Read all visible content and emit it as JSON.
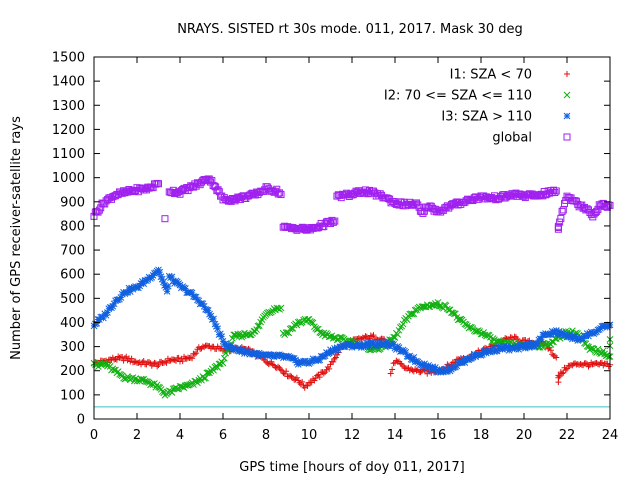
{
  "chart_data": {
    "type": "scatter",
    "title": "NRAYS. SISTED rt 30s mode. 011, 2017. Mask 30 deg",
    "xlabel": "GPS time [hours of doy 011, 2017]",
    "ylabel": "Number of GPS receiver-satellite rays",
    "xlim": [
      0,
      24
    ],
    "ylim": [
      0,
      1500
    ],
    "xticks": [
      0,
      2,
      4,
      6,
      8,
      10,
      12,
      14,
      16,
      18,
      20,
      22,
      24
    ],
    "yticks": [
      0,
      100,
      200,
      300,
      400,
      500,
      600,
      700,
      800,
      900,
      1000,
      1100,
      1200,
      1300,
      1400,
      1500
    ],
    "grid": false,
    "legend_position": "top-right",
    "reference_line": {
      "y": 50,
      "color": "#40c0c0"
    },
    "series": [
      {
        "name": "I1: SZA < 70",
        "marker": "+",
        "color": "#e01010",
        "points": [
          [
            0,
            230
          ],
          [
            0.5,
            240
          ],
          [
            1,
            250
          ],
          [
            1.5,
            250
          ],
          [
            2,
            235
          ],
          [
            2.5,
            230
          ],
          [
            3,
            225
          ],
          [
            3.5,
            245
          ],
          [
            4,
            245
          ],
          [
            4.5,
            255
          ],
          [
            5,
            300
          ],
          [
            5.5,
            300
          ],
          [
            6,
            285
          ],
          [
            6.5,
            290
          ],
          [
            7,
            290
          ],
          [
            7.5,
            270
          ],
          [
            8,
            240
          ],
          [
            8.5,
            220
          ],
          [
            9,
            185
          ],
          [
            9.5,
            160
          ],
          [
            9.8,
            135
          ],
          [
            10,
            150
          ],
          [
            10.5,
            180
          ],
          [
            11,
            220
          ],
          [
            11.5,
            300
          ],
          [
            12,
            320
          ],
          [
            12.5,
            335
          ],
          [
            13,
            340
          ],
          [
            13.5,
            330
          ],
          [
            14,
            240
          ],
          [
            14.5,
            210
          ],
          [
            15,
            200
          ],
          [
            15.5,
            195
          ],
          [
            16,
            200
          ],
          [
            16.5,
            220
          ],
          [
            17,
            250
          ],
          [
            17.5,
            260
          ],
          [
            18,
            280
          ],
          [
            18.5,
            300
          ],
          [
            19,
            325
          ],
          [
            19.5,
            335
          ],
          [
            20,
            320
          ],
          [
            20.5,
            315
          ],
          [
            21,
            310
          ],
          [
            21.5,
            255
          ],
          [
            22,
            215
          ],
          [
            22.5,
            230
          ],
          [
            23,
            225
          ],
          [
            23.5,
            225
          ],
          [
            24,
            225
          ],
          [
            13.8,
            190
          ],
          [
            21.6,
            160
          ],
          [
            21.6,
            175
          ]
        ]
      },
      {
        "name": "I2: 70 <= SZA <= 110",
        "marker": "x",
        "color": "#10b010",
        "points": [
          [
            0,
            240
          ],
          [
            0.5,
            230
          ],
          [
            1,
            195
          ],
          [
            1.5,
            170
          ],
          [
            2,
            165
          ],
          [
            2.5,
            155
          ],
          [
            3,
            130
          ],
          [
            3.3,
            105
          ],
          [
            3.5,
            110
          ],
          [
            4,
            130
          ],
          [
            4.5,
            140
          ],
          [
            5,
            165
          ],
          [
            5.5,
            200
          ],
          [
            6,
            240
          ],
          [
            6.5,
            340
          ],
          [
            7,
            350
          ],
          [
            7.5,
            360
          ],
          [
            8,
            440
          ],
          [
            8.5,
            460
          ],
          [
            8.7,
            460
          ],
          [
            8.8,
            350
          ],
          [
            9,
            360
          ],
          [
            9.5,
            400
          ],
          [
            10,
            410
          ],
          [
            10.5,
            360
          ],
          [
            11,
            340
          ],
          [
            11.5,
            330
          ],
          [
            12,
            320
          ],
          [
            12.5,
            300
          ],
          [
            13,
            290
          ],
          [
            13.5,
            300
          ],
          [
            14,
            340
          ],
          [
            14.5,
            410
          ],
          [
            15,
            455
          ],
          [
            15.5,
            470
          ],
          [
            16,
            475
          ],
          [
            16.5,
            460
          ],
          [
            17,
            410
          ],
          [
            17.5,
            375
          ],
          [
            18,
            360
          ],
          [
            18.5,
            330
          ],
          [
            19,
            310
          ],
          [
            19.5,
            310
          ],
          [
            20,
            300
          ],
          [
            20.5,
            305
          ],
          [
            21,
            305
          ],
          [
            21.5,
            330
          ],
          [
            22,
            360
          ],
          [
            22.5,
            355
          ],
          [
            23,
            290
          ],
          [
            23.5,
            280
          ],
          [
            24,
            265
          ],
          [
            0.2,
            220
          ],
          [
            24,
            330
          ]
        ]
      },
      {
        "name": "I3: SZA > 110",
        "marker": "*",
        "color": "#1060e0",
        "points": [
          [
            0,
            390
          ],
          [
            0.5,
            430
          ],
          [
            1,
            490
          ],
          [
            1.5,
            530
          ],
          [
            2,
            545
          ],
          [
            2.5,
            580
          ],
          [
            3,
            620
          ],
          [
            3.5,
            590
          ],
          [
            4,
            550
          ],
          [
            4.5,
            520
          ],
          [
            5,
            480
          ],
          [
            5.5,
            420
          ],
          [
            6,
            320
          ],
          [
            6.5,
            290
          ],
          [
            7,
            280
          ],
          [
            7.5,
            270
          ],
          [
            8,
            260
          ],
          [
            8.5,
            260
          ],
          [
            9,
            255
          ],
          [
            9.5,
            235
          ],
          [
            10,
            235
          ],
          [
            10.5,
            250
          ],
          [
            11,
            280
          ],
          [
            11.5,
            300
          ],
          [
            12,
            305
          ],
          [
            12.5,
            305
          ],
          [
            13,
            310
          ],
          [
            13.5,
            315
          ],
          [
            14,
            300
          ],
          [
            14.5,
            270
          ],
          [
            15,
            240
          ],
          [
            15.5,
            220
          ],
          [
            16,
            200
          ],
          [
            16.5,
            205
          ],
          [
            17,
            230
          ],
          [
            17.5,
            255
          ],
          [
            18,
            270
          ],
          [
            18.5,
            285
          ],
          [
            19,
            295
          ],
          [
            19.5,
            290
          ],
          [
            20,
            300
          ],
          [
            20.5,
            310
          ],
          [
            21,
            350
          ],
          [
            21.5,
            360
          ],
          [
            22,
            345
          ],
          [
            22.5,
            330
          ],
          [
            23,
            350
          ],
          [
            23.5,
            370
          ],
          [
            24,
            390
          ],
          [
            3.4,
            525
          ]
        ]
      },
      {
        "name": "global",
        "marker": "square",
        "color": "#a020f0",
        "points": [
          [
            0,
            845
          ],
          [
            0.5,
            900
          ],
          [
            1,
            930
          ],
          [
            1.5,
            940
          ],
          [
            2,
            950
          ],
          [
            2.5,
            955
          ],
          [
            3,
            975
          ],
          [
            3.5,
            945
          ],
          [
            4,
            940
          ],
          [
            4.5,
            960
          ],
          [
            5,
            980
          ],
          [
            5.3,
            1000
          ],
          [
            5.6,
            970
          ],
          [
            6,
            910
          ],
          [
            6.5,
            910
          ],
          [
            7,
            920
          ],
          [
            7.5,
            930
          ],
          [
            8,
            955
          ],
          [
            8.5,
            945
          ],
          [
            8.7,
            930
          ],
          [
            8.8,
            800
          ],
          [
            9,
            790
          ],
          [
            9.5,
            790
          ],
          [
            10,
            785
          ],
          [
            10.5,
            800
          ],
          [
            11,
            815
          ],
          [
            11.2,
            820
          ],
          [
            11.3,
            920
          ],
          [
            11.5,
            925
          ],
          [
            12,
            930
          ],
          [
            12.5,
            945
          ],
          [
            13,
            935
          ],
          [
            13.5,
            920
          ],
          [
            14,
            895
          ],
          [
            14.5,
            890
          ],
          [
            15,
            890
          ],
          [
            15.5,
            885
          ],
          [
            16,
            860
          ],
          [
            16.5,
            880
          ],
          [
            17,
            895
          ],
          [
            17.5,
            910
          ],
          [
            18,
            920
          ],
          [
            18.5,
            915
          ],
          [
            19,
            920
          ],
          [
            19.5,
            930
          ],
          [
            20,
            925
          ],
          [
            20.5,
            925
          ],
          [
            21,
            935
          ],
          [
            21.5,
            945
          ],
          [
            22,
            930
          ],
          [
            22.5,
            890
          ],
          [
            23,
            870
          ],
          [
            23.5,
            885
          ],
          [
            24,
            885
          ],
          [
            3.3,
            830
          ],
          [
            21.6,
            785
          ],
          [
            21.6,
            800
          ],
          [
            15.3,
            845
          ],
          [
            23.2,
            840
          ]
        ]
      }
    ]
  }
}
